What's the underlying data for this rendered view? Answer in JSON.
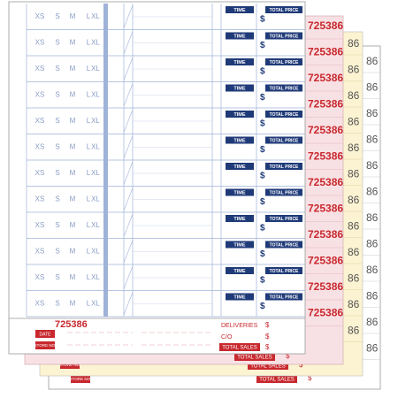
{
  "sheets": {
    "front": {
      "sizes": [
        "XS",
        "S",
        "M",
        "L",
        "XL"
      ],
      "time_label": "TIME",
      "total_price_label": "TOTAL PRICE",
      "currency": "$",
      "footer": {
        "ticket_number": "725386",
        "date": "DATE",
        "store_no": "STORE NO.",
        "deliveries": "DELIVERIES",
        "co": "C/O",
        "total_sales": "TOTAL SALES",
        "currency": "$"
      }
    },
    "pink": {
      "ticket_number": "725386",
      "total_sales": "TOTAL SALES",
      "currency": "$"
    },
    "yellow": {
      "ticket_suffix": "86",
      "store_no": "STORE NO.",
      "total_sales": "TOTAL SALES",
      "currency": "$"
    },
    "back": {
      "ticket_suffix": "86",
      "store_no": "STORE NO.",
      "total_sales": "TOTAL SALES",
      "currency": "$"
    }
  }
}
